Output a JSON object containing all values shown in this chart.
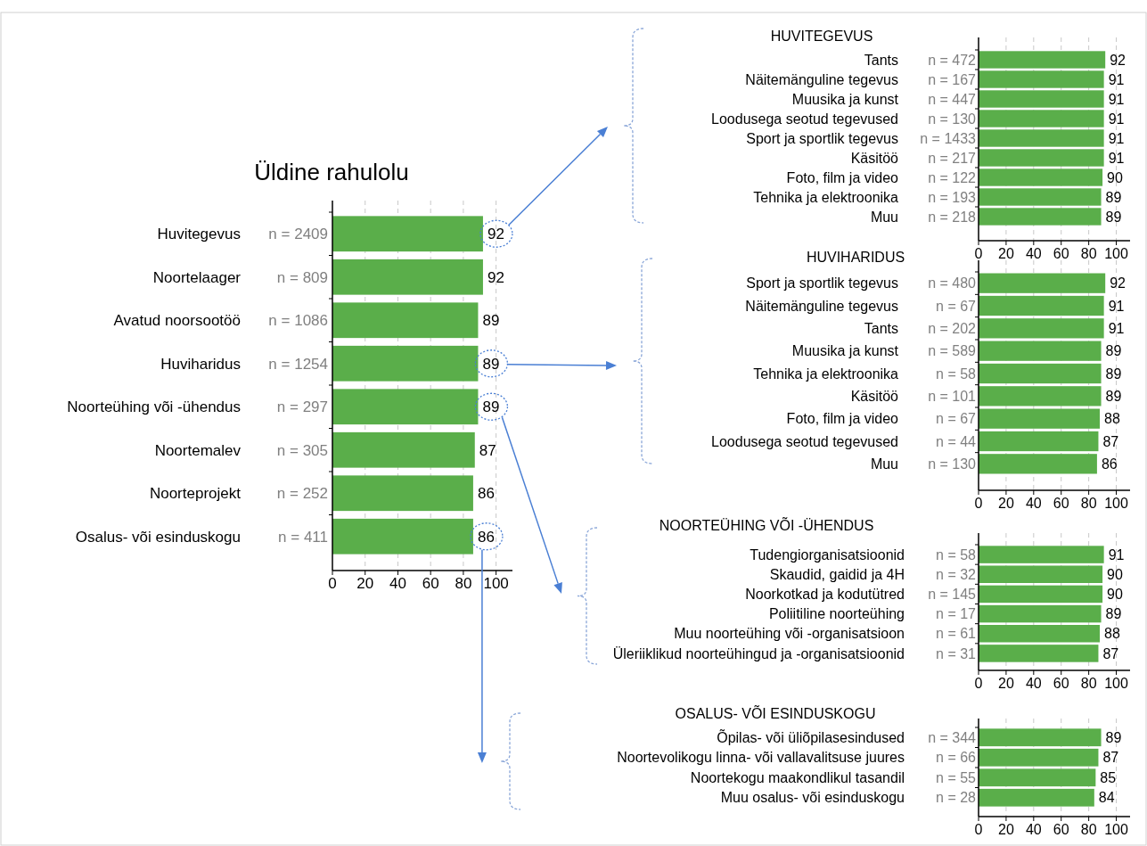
{
  "chart_data": [
    {
      "type": "bar",
      "orientation": "horizontal",
      "title": "Üldine rahulolu",
      "categories": [
        "Huvitegevus",
        "Noortelaager",
        "Avatud noorsootöö",
        "Huviharidus",
        "Noorteühing või -ühendus",
        "Noortemalev",
        "Noorteprojekt",
        "Osalus- või esinduskogu"
      ],
      "values": [
        92,
        92,
        89,
        89,
        89,
        87,
        86,
        86
      ],
      "color": "#5aae4a",
      "xlim": [
        0,
        110
      ],
      "xticks": [
        0,
        20,
        40,
        60,
        80,
        100
      ],
      "grid": "x",
      "data_labels": true,
      "annotations": [
        "n = 2409",
        "n = 809",
        "n = 1086",
        "n = 1254",
        "n = 297",
        "n = 305",
        "n = 252",
        "n = 411"
      ]
    },
    {
      "type": "bar",
      "orientation": "horizontal",
      "title": "HUVITEGEVUS",
      "categories": [
        "Tants",
        "Näitemänguline tegevus",
        "Muusika ja kunst",
        "Loodusega seotud tegevused",
        "Sport ja sportlik tegevus",
        "Käsitöö",
        "Foto, film ja video",
        "Tehnika ja elektroonika",
        "Muu"
      ],
      "values": [
        92,
        91,
        91,
        91,
        91,
        91,
        90,
        89,
        89
      ],
      "color": "#5aae4a",
      "xlim": [
        0,
        110
      ],
      "xticks": [
        0,
        20,
        40,
        60,
        80,
        100
      ],
      "grid": "x",
      "data_labels": true,
      "annotations": [
        "n = 472",
        "n = 167",
        "n = 447",
        "n = 130",
        "n = 1433",
        "n = 217",
        "n = 122",
        "n = 193",
        "n = 218"
      ]
    },
    {
      "type": "bar",
      "orientation": "horizontal",
      "title": "HUVIHARIDUS",
      "categories": [
        "Sport ja sportlik tegevus",
        "Näitemänguline tegevus",
        "Tants",
        "Muusika ja kunst",
        "Tehnika ja elektroonika",
        "Käsitöö",
        "Foto, film ja video",
        "Loodusega seotud tegevused",
        "Muu"
      ],
      "values": [
        92,
        91,
        91,
        89,
        89,
        89,
        88,
        87,
        86
      ],
      "color": "#5aae4a",
      "xlim": [
        0,
        110
      ],
      "xticks": [
        0,
        20,
        40,
        60,
        80,
        100
      ],
      "grid": "x",
      "data_labels": true,
      "annotations": [
        "n = 480",
        "n = 67",
        "n = 202",
        "n = 589",
        "n = 58",
        "n = 101",
        "n = 67",
        "n = 44",
        "n = 130"
      ]
    },
    {
      "type": "bar",
      "orientation": "horizontal",
      "title": "NOORTEÜHING VÕI -ÜHENDUS",
      "categories": [
        "Tudengiorganisatsioonid",
        "Skaudid, gaidid ja 4H",
        "Noorkotkad ja kodutütred",
        "Poliitiline noorteühing",
        "Muu noorteühing või -organisatsioon",
        "Üleriiklikud noorteühingud ja -organisatsioonid"
      ],
      "values": [
        91,
        90,
        90,
        89,
        88,
        87
      ],
      "color": "#5aae4a",
      "xlim": [
        0,
        110
      ],
      "xticks": [
        0,
        20,
        40,
        60,
        80,
        100
      ],
      "grid": "x",
      "data_labels": true,
      "annotations": [
        "n = 58",
        "n = 32",
        "n = 145",
        "n = 17",
        "n = 61",
        "n = 31"
      ]
    },
    {
      "type": "bar",
      "orientation": "horizontal",
      "title": "OSALUS- VÕI ESINDUSKOGU",
      "categories": [
        "Õpilas- või üliõpilasesindused",
        "Noortevolikogu linna- või vallavalitsuse juures",
        "Noortekogu maakondlikul tasandil",
        "Muu osalus- või esinduskogu"
      ],
      "values": [
        89,
        87,
        85,
        84
      ],
      "color": "#5aae4a",
      "xlim": [
        0,
        110
      ],
      "xticks": [
        0,
        20,
        40,
        60,
        80,
        100
      ],
      "grid": "x",
      "data_labels": true,
      "annotations": [
        "n = 344",
        "n = 66",
        "n = 55",
        "n = 28"
      ]
    }
  ]
}
